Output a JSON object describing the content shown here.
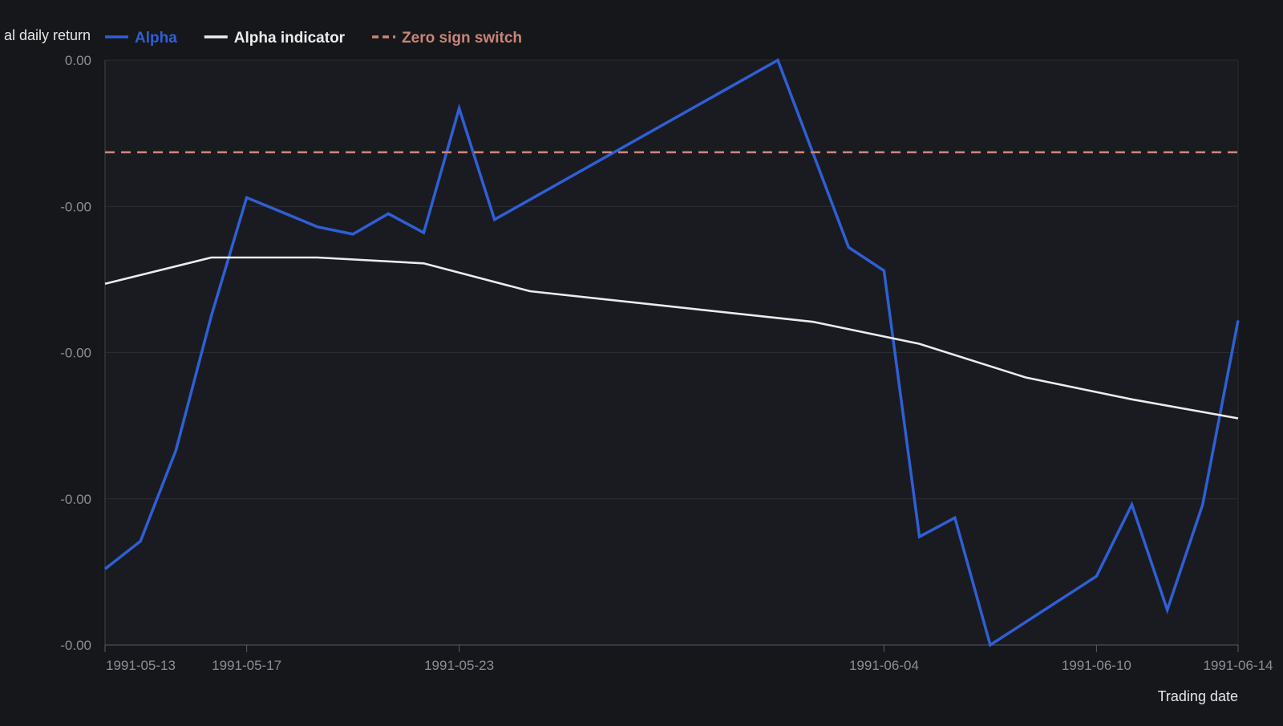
{
  "chart_data": {
    "type": "line",
    "ylabel": "al daily return",
    "xlabel": "Trading date",
    "x_tick_labels": [
      "1991-05-13",
      "1991-05-17",
      "1991-05-23",
      "1991-06-04",
      "1991-06-10",
      "1991-06-14"
    ],
    "y_tick_labels": [
      "0.00",
      "-0.00",
      "-0.00",
      "-0.00",
      "-0.00"
    ],
    "y_tick_values": [
      0.0,
      -0.001,
      -0.002,
      -0.003,
      -0.004
    ],
    "ylim": [
      -0.004,
      0.0
    ],
    "x_range": [
      "1991-05-13",
      "1991-06-14"
    ],
    "grid": true,
    "legend_position": "top",
    "series": [
      {
        "name": "Alpha",
        "color": "#2f5fd6",
        "style": "solid",
        "points": [
          {
            "x": "1991-05-13",
            "y": -0.00348
          },
          {
            "x": "1991-05-14",
            "y": -0.00329
          },
          {
            "x": "1991-05-15",
            "y": -0.00267
          },
          {
            "x": "1991-05-16",
            "y": -0.00175
          },
          {
            "x": "1991-05-17",
            "y": -0.00094
          },
          {
            "x": "1991-05-18",
            "y": -0.00104
          },
          {
            "x": "1991-05-19",
            "y": -0.00114
          },
          {
            "x": "1991-05-20",
            "y": -0.00119
          },
          {
            "x": "1991-05-21",
            "y": -0.00105
          },
          {
            "x": "1991-05-22",
            "y": -0.00118
          },
          {
            "x": "1991-05-23",
            "y": -0.00033
          },
          {
            "x": "1991-05-24",
            "y": -0.00109
          },
          {
            "x": "1991-06-01",
            "y": 0.0
          },
          {
            "x": "1991-06-03",
            "y": -0.00128
          },
          {
            "x": "1991-06-04",
            "y": -0.00144
          },
          {
            "x": "1991-06-05",
            "y": -0.00326
          },
          {
            "x": "1991-06-06",
            "y": -0.00313
          },
          {
            "x": "1991-06-07",
            "y": -0.004
          },
          {
            "x": "1991-06-10",
            "y": -0.00353
          },
          {
            "x": "1991-06-11",
            "y": -0.00304
          },
          {
            "x": "1991-06-12",
            "y": -0.00376
          },
          {
            "x": "1991-06-13",
            "y": -0.00304
          },
          {
            "x": "1991-06-14",
            "y": -0.00178
          }
        ]
      },
      {
        "name": "Alpha indicator",
        "color": "#ececec",
        "style": "solid",
        "points": [
          {
            "x": "1991-05-13",
            "y": -0.00153
          },
          {
            "x": "1991-05-16",
            "y": -0.00135
          },
          {
            "x": "1991-05-19",
            "y": -0.00135
          },
          {
            "x": "1991-05-22",
            "y": -0.00139
          },
          {
            "x": "1991-05-25",
            "y": -0.00158
          },
          {
            "x": "1991-06-02",
            "y": -0.00179
          },
          {
            "x": "1991-06-05",
            "y": -0.00194
          },
          {
            "x": "1991-06-08",
            "y": -0.00217
          },
          {
            "x": "1991-06-11",
            "y": -0.00232
          },
          {
            "x": "1991-06-14",
            "y": -0.00245
          }
        ]
      },
      {
        "name": "Zero sign switch",
        "color": "#c98578",
        "style": "dashed",
        "y": -0.00063
      }
    ]
  }
}
